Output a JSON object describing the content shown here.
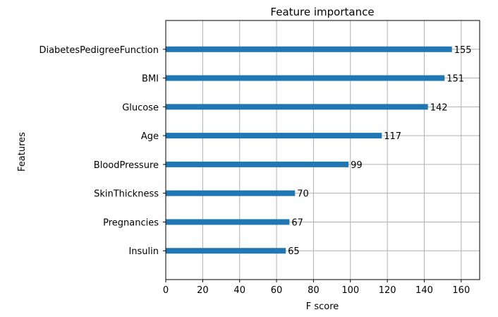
{
  "chart_data": {
    "type": "bar",
    "orientation": "horizontal",
    "title": "Feature importance",
    "xlabel": "F score",
    "ylabel": "Features",
    "categories": [
      "Insulin",
      "Pregnancies",
      "SkinThickness",
      "BloodPressure",
      "Age",
      "Glucose",
      "BMI",
      "DiabetesPedigreeFunction"
    ],
    "values": [
      65,
      67,
      70,
      99,
      117,
      142,
      151,
      155
    ],
    "xlim": [
      0,
      170
    ],
    "xticks": [
      0,
      20,
      40,
      60,
      80,
      100,
      120,
      140,
      160
    ],
    "grid": true,
    "show_value_labels": true,
    "bar_color": "#1f77b4",
    "grid_color": "#b0b0b0"
  }
}
